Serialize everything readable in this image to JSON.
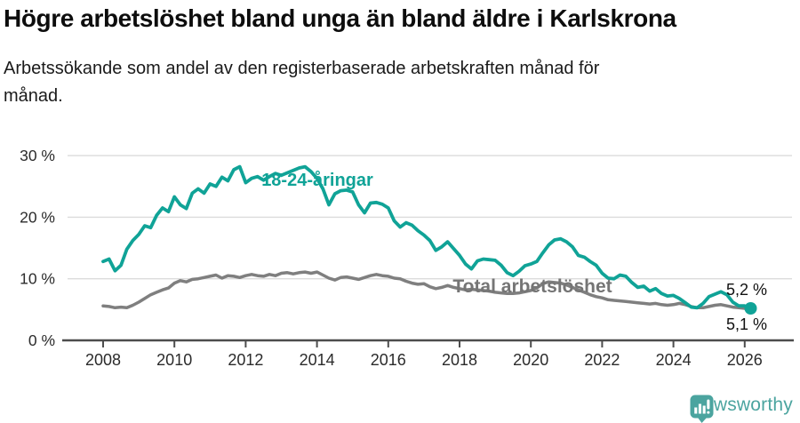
{
  "header": {
    "title": "Högre arbetslöshet bland unga än bland äldre i Karlskrona",
    "subtitle": "Arbetssökande som andel av den registerbaserade arbetskraften månad för månad."
  },
  "chart_data": {
    "type": "line",
    "title": "Högre arbetslöshet bland unga än bland äldre i Karlskrona",
    "subtitle": "Arbetssökande som andel av den registerbaserade arbetskraften månad för månad.",
    "x_unit": "decimal_year",
    "x_start": 2008.0,
    "x_step": 0.166667,
    "xlim": [
      2007.0,
      2027.3
    ],
    "ylim": [
      0,
      31
    ],
    "grid": "horizontal",
    "legend": "inline-labels",
    "y_tick_values": [
      0,
      10,
      20,
      30
    ],
    "y_tick_labels": [
      "0 %",
      "10 %",
      "20 %",
      "30 %"
    ],
    "x_tick_values": [
      2008,
      2010,
      2012,
      2014,
      2016,
      2018,
      2020,
      2022,
      2024,
      2026
    ],
    "x_tick_labels": [
      "2008",
      "2010",
      "2012",
      "2014",
      "2016",
      "2018",
      "2020",
      "2022",
      "2024",
      "2026"
    ],
    "series": [
      {
        "name": "18-24-åringar",
        "color": "#10a397",
        "end_label": "5,2 %",
        "end_dot": true,
        "values": [
          12.8,
          13.2,
          11.3,
          12.2,
          14.8,
          16.2,
          17.2,
          18.6,
          18.3,
          20.3,
          21.5,
          20.9,
          23.3,
          22.0,
          21.4,
          23.9,
          24.6,
          23.9,
          25.4,
          25.0,
          26.5,
          25.9,
          27.7,
          28.2,
          25.6,
          26.3,
          26.6,
          26.0,
          26.6,
          27.1,
          26.8,
          27.2,
          27.6,
          28.0,
          28.2,
          27.4,
          26.3,
          24.6,
          22.0,
          23.8,
          24.3,
          24.4,
          24.1,
          22.0,
          20.7,
          22.3,
          22.4,
          22.1,
          21.5,
          19.4,
          18.4,
          19.1,
          18.7,
          17.8,
          17.1,
          16.2,
          14.6,
          15.2,
          16.0,
          14.9,
          13.8,
          12.4,
          11.6,
          12.9,
          13.2,
          13.1,
          13.0,
          12.2,
          11.0,
          10.5,
          11.2,
          12.1,
          12.4,
          12.8,
          14.2,
          15.5,
          16.3,
          16.5,
          16.0,
          15.2,
          13.8,
          13.5,
          12.8,
          12.2,
          10.9,
          10.1,
          10.0,
          10.6,
          10.4,
          9.4,
          8.6,
          8.8,
          8.0,
          8.4,
          7.6,
          7.2,
          7.3,
          6.8,
          6.1,
          5.4,
          5.3,
          6.0,
          7.1,
          7.5,
          7.9,
          7.4,
          6.2,
          5.6,
          5.6,
          5.2
        ]
      },
      {
        "name": "Total arbetslöshet",
        "color": "#7f7f7f",
        "end_label": "5,1 %",
        "end_dot": false,
        "values": [
          5.6,
          5.5,
          5.3,
          5.4,
          5.3,
          5.7,
          6.2,
          6.8,
          7.4,
          7.8,
          8.2,
          8.5,
          9.3,
          9.7,
          9.5,
          9.9,
          10.0,
          10.2,
          10.4,
          10.6,
          10.1,
          10.5,
          10.4,
          10.2,
          10.5,
          10.7,
          10.5,
          10.4,
          10.7,
          10.5,
          10.9,
          11.0,
          10.8,
          11.0,
          11.1,
          10.9,
          11.1,
          10.6,
          10.1,
          9.8,
          10.2,
          10.3,
          10.1,
          9.9,
          10.2,
          10.5,
          10.7,
          10.5,
          10.4,
          10.1,
          10.0,
          9.6,
          9.3,
          9.1,
          9.2,
          8.7,
          8.4,
          8.6,
          8.9,
          8.6,
          8.4,
          8.2,
          8.3,
          8.2,
          8.1,
          8.0,
          7.8,
          7.7,
          7.6,
          7.6,
          7.7,
          7.9,
          8.1,
          8.5,
          9.2,
          9.5,
          9.4,
          9.3,
          9.0,
          8.6,
          8.2,
          7.8,
          7.4,
          7.1,
          6.9,
          6.6,
          6.5,
          6.4,
          6.3,
          6.2,
          6.1,
          6.0,
          5.9,
          6.0,
          5.8,
          5.7,
          5.8,
          6.0,
          5.8,
          5.5,
          5.3,
          5.3,
          5.5,
          5.7,
          5.8,
          5.6,
          5.4,
          5.3,
          5.2,
          5.1
        ]
      }
    ]
  },
  "footer": {
    "brand": "Newsworthy"
  }
}
